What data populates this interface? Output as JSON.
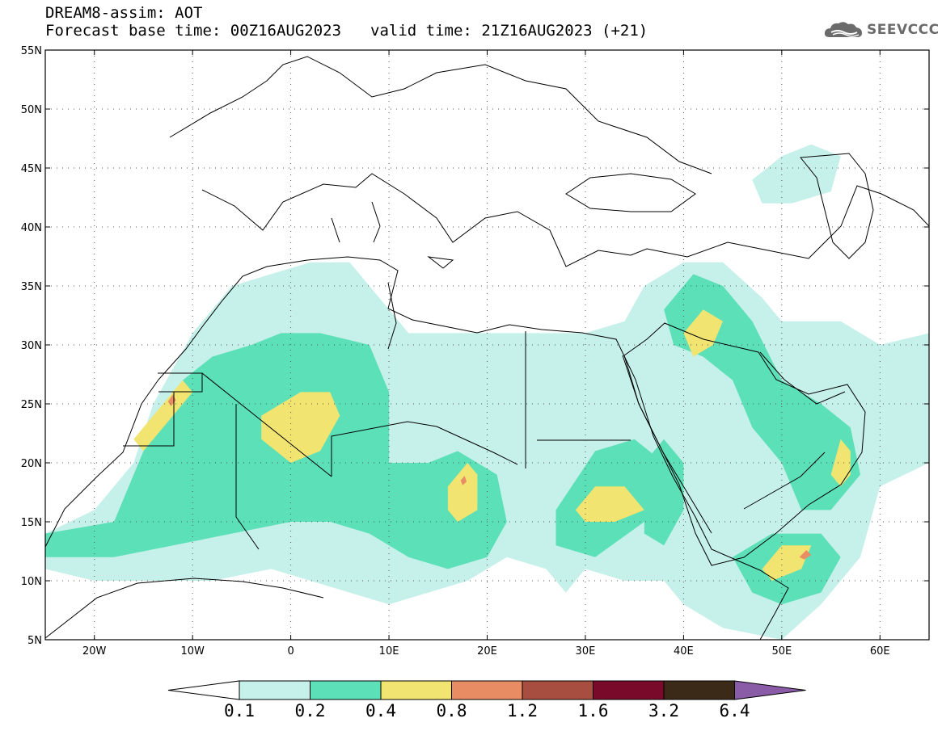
{
  "header": {
    "title": "DREAM8-assim: AOT",
    "base_time": "Forecast base time: 00Z16AUG2023",
    "valid_time": "valid time: 21Z16AUG2023 (+21)"
  },
  "logo": {
    "text": "SEEVCCC",
    "icon": "cloud-logo-icon"
  },
  "map": {
    "lon_range": [
      -25,
      65
    ],
    "lat_range": [
      5,
      55
    ],
    "lon_ticks": [
      {
        "value": -20,
        "label": "20W"
      },
      {
        "value": -10,
        "label": "10W"
      },
      {
        "value": 0,
        "label": "0"
      },
      {
        "value": 10,
        "label": "10E"
      },
      {
        "value": 20,
        "label": "20E"
      },
      {
        "value": 30,
        "label": "30E"
      },
      {
        "value": 40,
        "label": "40E"
      },
      {
        "value": 50,
        "label": "50E"
      },
      {
        "value": 60,
        "label": "60E"
      }
    ],
    "lat_ticks": [
      {
        "value": 5,
        "label": "5N"
      },
      {
        "value": 10,
        "label": "10N"
      },
      {
        "value": 15,
        "label": "15N"
      },
      {
        "value": 20,
        "label": "20N"
      },
      {
        "value": 25,
        "label": "25N"
      },
      {
        "value": 30,
        "label": "30N"
      },
      {
        "value": 35,
        "label": "35N"
      },
      {
        "value": 40,
        "label": "40N"
      },
      {
        "value": 45,
        "label": "45N"
      },
      {
        "value": 50,
        "label": "50N"
      },
      {
        "value": 55,
        "label": "55N"
      }
    ],
    "grid": "dotted"
  },
  "colorbar": {
    "bins": [
      {
        "color": "#c6f0ea"
      },
      {
        "color": "#5ce0b8"
      },
      {
        "color": "#f2e470"
      },
      {
        "color": "#e88c64"
      },
      {
        "color": "#a84e40"
      },
      {
        "color": "#7a0a2a"
      },
      {
        "color": "#3c2a18"
      }
    ],
    "under_color": "#ffffff",
    "over_color": "#8a5ca8",
    "labels": [
      "0.1",
      "0.2",
      "0.4",
      "0.8",
      "1.2",
      "1.6",
      "3.2",
      "6.4"
    ]
  },
  "aot_field": [
    {
      "level": 0,
      "polygon": [
        [
          -25,
          14
        ],
        [
          -20,
          16
        ],
        [
          -16,
          20
        ],
        [
          -14,
          25
        ],
        [
          -12,
          28
        ],
        [
          -10,
          31
        ],
        [
          -8,
          33
        ],
        [
          -6,
          35
        ],
        [
          -2,
          36
        ],
        [
          2,
          37
        ],
        [
          6,
          37
        ],
        [
          10,
          33
        ],
        [
          12,
          31
        ],
        [
          16,
          31
        ],
        [
          20,
          31
        ],
        [
          26,
          31
        ],
        [
          30,
          31
        ],
        [
          34,
          32
        ],
        [
          36,
          35
        ],
        [
          40,
          37
        ],
        [
          44,
          37
        ],
        [
          48,
          34
        ],
        [
          50,
          32
        ],
        [
          56,
          32
        ],
        [
          60,
          30
        ],
        [
          65,
          31
        ],
        [
          65,
          20
        ],
        [
          60,
          18
        ],
        [
          58,
          12
        ],
        [
          54,
          8
        ],
        [
          50,
          5
        ],
        [
          44,
          6
        ],
        [
          40,
          8
        ],
        [
          38,
          10
        ],
        [
          34,
          10
        ],
        [
          30,
          11
        ],
        [
          28,
          9
        ],
        [
          26,
          11
        ],
        [
          22,
          12
        ],
        [
          18,
          10
        ],
        [
          14,
          9
        ],
        [
          10,
          8
        ],
        [
          6,
          9
        ],
        [
          2,
          10
        ],
        [
          -2,
          11
        ],
        [
          -8,
          10
        ],
        [
          -14,
          10
        ],
        [
          -20,
          10
        ],
        [
          -25,
          11
        ]
      ]
    },
    {
      "level": 0,
      "polygon": [
        [
          47,
          44
        ],
        [
          50,
          46
        ],
        [
          53,
          47
        ],
        [
          56,
          46
        ],
        [
          55,
          43
        ],
        [
          51,
          42
        ],
        [
          48,
          42
        ]
      ]
    },
    {
      "level": 1,
      "polygon": [
        [
          -25,
          14
        ],
        [
          -18,
          15
        ],
        [
          -16,
          19
        ],
        [
          -14,
          23
        ],
        [
          -11,
          27
        ],
        [
          -8,
          29
        ],
        [
          -4,
          30
        ],
        [
          -1,
          31
        ],
        [
          3,
          31
        ],
        [
          8,
          30
        ],
        [
          10,
          26
        ],
        [
          10,
          20
        ],
        [
          14,
          20
        ],
        [
          17,
          21
        ],
        [
          21,
          19
        ],
        [
          22,
          15
        ],
        [
          20,
          12
        ],
        [
          16,
          11
        ],
        [
          12,
          12
        ],
        [
          8,
          14
        ],
        [
          4,
          15
        ],
        [
          0,
          15
        ],
        [
          -6,
          14
        ],
        [
          -12,
          13
        ],
        [
          -18,
          12
        ],
        [
          -25,
          12
        ]
      ]
    },
    {
      "level": 1,
      "polygon": [
        [
          27,
          16
        ],
        [
          31,
          21
        ],
        [
          35,
          22
        ],
        [
          38,
          20
        ],
        [
          38,
          17
        ],
        [
          36,
          15
        ],
        [
          31,
          12
        ],
        [
          27,
          13
        ]
      ]
    },
    {
      "level": 1,
      "polygon": [
        [
          38,
          33
        ],
        [
          41,
          36
        ],
        [
          44,
          35
        ],
        [
          47,
          32
        ],
        [
          50,
          27
        ],
        [
          54,
          25
        ],
        [
          57,
          23
        ],
        [
          58,
          19
        ],
        [
          55,
          16
        ],
        [
          52,
          16
        ],
        [
          50,
          20
        ],
        [
          47,
          23
        ],
        [
          45,
          27
        ],
        [
          42,
          29
        ],
        [
          39,
          30
        ]
      ]
    },
    {
      "level": 1,
      "polygon": [
        [
          45,
          12
        ],
        [
          49,
          14
        ],
        [
          54,
          14
        ],
        [
          56,
          12
        ],
        [
          54,
          9
        ],
        [
          50,
          8
        ],
        [
          47,
          9
        ]
      ]
    },
    {
      "level": 1,
      "polygon": [
        [
          36,
          20
        ],
        [
          38,
          22
        ],
        [
          40,
          20
        ],
        [
          40,
          16
        ],
        [
          38,
          13
        ],
        [
          36,
          14
        ]
      ]
    },
    {
      "level": 2,
      "polygon": [
        [
          -3,
          24
        ],
        [
          1,
          26
        ],
        [
          4,
          26
        ],
        [
          5,
          24
        ],
        [
          3,
          21
        ],
        [
          0,
          20
        ],
        [
          -3,
          22
        ]
      ]
    },
    {
      "level": 2,
      "polygon": [
        [
          -16,
          22
        ],
        [
          -13,
          25
        ],
        [
          -11,
          27
        ],
        [
          -10,
          26
        ],
        [
          -12,
          24
        ],
        [
          -15,
          21
        ]
      ]
    },
    {
      "level": 2,
      "polygon": [
        [
          16,
          18
        ],
        [
          18,
          20
        ],
        [
          19,
          19
        ],
        [
          19,
          16
        ],
        [
          17,
          15
        ],
        [
          16,
          16
        ]
      ]
    },
    {
      "level": 2,
      "polygon": [
        [
          40,
          31
        ],
        [
          42,
          33
        ],
        [
          44,
          32
        ],
        [
          43,
          30
        ],
        [
          41,
          29
        ]
      ]
    },
    {
      "level": 2,
      "polygon": [
        [
          29,
          16
        ],
        [
          31,
          18
        ],
        [
          34,
          18
        ],
        [
          36,
          16
        ],
        [
          33,
          15
        ],
        [
          30,
          15
        ]
      ]
    },
    {
      "level": 2,
      "polygon": [
        [
          55,
          19
        ],
        [
          56,
          22
        ],
        [
          57,
          21
        ],
        [
          57,
          19
        ],
        [
          56,
          18
        ]
      ]
    },
    {
      "level": 2,
      "polygon": [
        [
          48,
          11
        ],
        [
          50,
          13
        ],
        [
          53,
          13
        ],
        [
          52,
          11
        ],
        [
          49,
          10
        ]
      ]
    },
    {
      "level": 3,
      "polygon": [
        [
          -12.5,
          25.2
        ],
        [
          -12,
          25.8
        ],
        [
          -11.7,
          25.3
        ],
        [
          -12.2,
          24.8
        ]
      ]
    },
    {
      "level": 3,
      "polygon": [
        [
          17.3,
          18.5
        ],
        [
          17.7,
          18.9
        ],
        [
          17.9,
          18.4
        ],
        [
          17.5,
          18.1
        ]
      ]
    },
    {
      "level": 3,
      "polygon": [
        [
          51.8,
          12
        ],
        [
          52.5,
          12.6
        ],
        [
          53,
          12.2
        ],
        [
          52.3,
          11.8
        ]
      ]
    }
  ]
}
